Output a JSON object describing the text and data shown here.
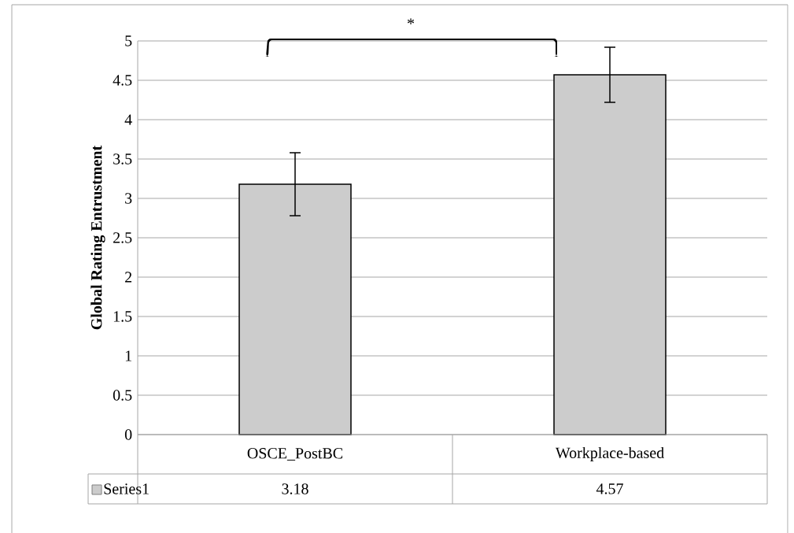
{
  "chart_data": {
    "type": "bar",
    "ylabel": "Global Rating Entrustment",
    "categories": [
      "OSCE_PostBC",
      "Workplace-based"
    ],
    "series": [
      {
        "name": "Series1",
        "color": "#cccccc",
        "values": [
          3.18,
          4.57
        ],
        "errors": [
          0.4,
          0.35
        ]
      }
    ],
    "ylim": [
      0,
      5
    ],
    "yticks": [
      0,
      0.5,
      1,
      1.5,
      2,
      2.5,
      3,
      3.5,
      4,
      4.5,
      5
    ],
    "grid": "y",
    "legend": "bottom",
    "data_labels": true,
    "annotations": [
      "*"
    ]
  }
}
